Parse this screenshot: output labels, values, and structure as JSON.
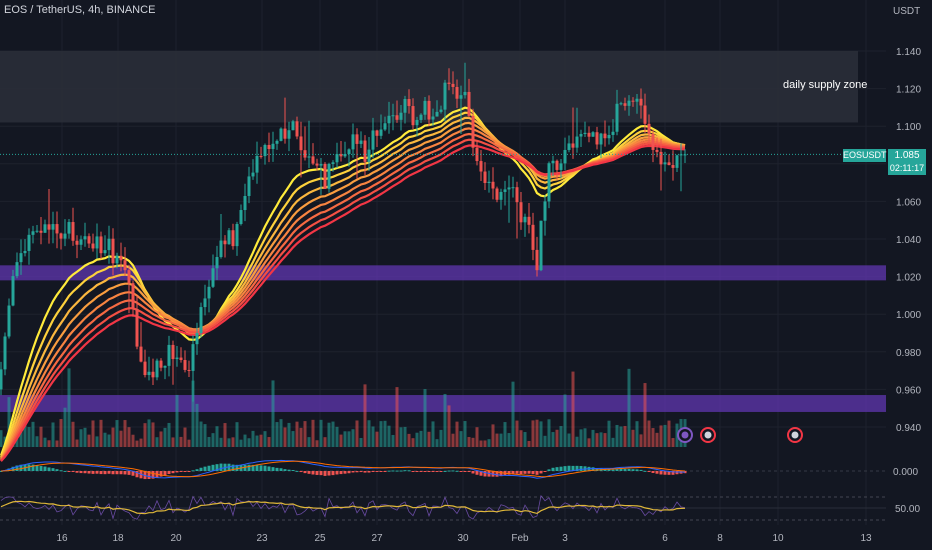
{
  "header": {
    "title": "EOS / TetherUS, 4h, BINANCE",
    "currency": "USDT"
  },
  "zone_label": "daily supply zone",
  "ticker": {
    "symbol": "EOSUSDT",
    "price": "1.085",
    "countdown": "02:11:17"
  },
  "colors": {
    "background": "#131722",
    "supply_zone": "#2a2e39",
    "support_band": "#5b35a8",
    "up": "#26a69a",
    "down": "#ef5350",
    "ema_start": "#ffeb3b",
    "ema_end": "#f23645",
    "rsi_line": "#7e57c2",
    "rsi_ma": "#e0b83a",
    "macd_line": "#2962ff",
    "signal_line": "#ff6d00"
  },
  "chart_data": {
    "type": "candlestick",
    "title": "EOS / TetherUS, 4h, BINANCE",
    "y_axis": {
      "unit": "USDT",
      "ticks": [
        1.14,
        1.12,
        1.1,
        1.08,
        1.06,
        1.04,
        1.02,
        1.0,
        0.98,
        0.96,
        0.94
      ]
    },
    "x_axis": {
      "ticks": [
        "16",
        "18",
        "20",
        "23",
        "25",
        "27",
        "30",
        "Feb",
        "3",
        "6",
        "8",
        "10",
        "13"
      ]
    },
    "last_price": 1.085,
    "zones": [
      {
        "label": "daily supply zone",
        "from": 1.102,
        "to": 1.14
      },
      {
        "label": "",
        "from": 1.018,
        "to": 1.026
      },
      {
        "label": "",
        "from": 0.948,
        "to": 0.957
      }
    ],
    "price_path": [
      [
        0,
        0.96
      ],
      [
        6,
        0.992
      ],
      [
        10,
        1.012
      ],
      [
        18,
        1.03
      ],
      [
        30,
        1.04
      ],
      [
        40,
        1.044
      ],
      [
        50,
        1.046
      ],
      [
        60,
        1.04
      ],
      [
        70,
        1.044
      ],
      [
        80,
        1.038
      ],
      [
        88,
        1.04
      ],
      [
        100,
        1.037
      ],
      [
        110,
        1.034
      ],
      [
        120,
        1.03
      ],
      [
        128,
        1.018
      ],
      [
        133,
        1.0
      ],
      [
        138,
        0.972
      ],
      [
        145,
        0.968
      ],
      [
        155,
        0.97
      ],
      [
        165,
        0.978
      ],
      [
        175,
        0.982
      ],
      [
        185,
        0.976
      ],
      [
        190,
        0.975
      ],
      [
        196,
        0.993
      ],
      [
        205,
        1.01
      ],
      [
        215,
        1.03
      ],
      [
        225,
        1.038
      ],
      [
        235,
        1.04
      ],
      [
        242,
        1.055
      ],
      [
        250,
        1.078
      ],
      [
        260,
        1.088
      ],
      [
        270,
        1.092
      ],
      [
        280,
        1.096
      ],
      [
        290,
        1.099
      ],
      [
        300,
        1.094
      ],
      [
        310,
        1.08
      ],
      [
        318,
        1.082
      ],
      [
        325,
        1.072
      ],
      [
        335,
        1.09
      ],
      [
        345,
        1.085
      ],
      [
        355,
        1.093
      ],
      [
        365,
        1.087
      ],
      [
        375,
        1.1
      ],
      [
        385,
        1.097
      ],
      [
        395,
        1.108
      ],
      [
        405,
        1.112
      ],
      [
        415,
        1.104
      ],
      [
        425,
        1.11
      ],
      [
        435,
        1.106
      ],
      [
        445,
        1.118
      ],
      [
        455,
        1.115
      ],
      [
        465,
        1.12
      ],
      [
        473,
        1.09
      ],
      [
        480,
        1.075
      ],
      [
        490,
        1.066
      ],
      [
        500,
        1.06
      ],
      [
        510,
        1.068
      ],
      [
        520,
        1.055
      ],
      [
        530,
        1.048
      ],
      [
        536,
        1.022
      ],
      [
        542,
        1.05
      ],
      [
        550,
        1.078
      ],
      [
        560,
        1.084
      ],
      [
        570,
        1.092
      ],
      [
        580,
        1.09
      ],
      [
        590,
        1.092
      ],
      [
        600,
        1.096
      ],
      [
        610,
        1.096
      ],
      [
        620,
        1.112
      ],
      [
        630,
        1.118
      ],
      [
        640,
        1.107
      ],
      [
        648,
        1.092
      ],
      [
        655,
        1.08
      ],
      [
        662,
        1.082
      ],
      [
        670,
        1.082
      ],
      [
        678,
        1.083
      ],
      [
        685,
        1.085
      ]
    ],
    "ema_ribbon_periods": [
      20,
      25,
      30,
      35,
      40,
      45,
      50,
      55
    ],
    "indicators": [
      {
        "name": "MACD",
        "zero_level": "0.000"
      },
      {
        "name": "RSI",
        "midline": "50.00"
      }
    ]
  }
}
